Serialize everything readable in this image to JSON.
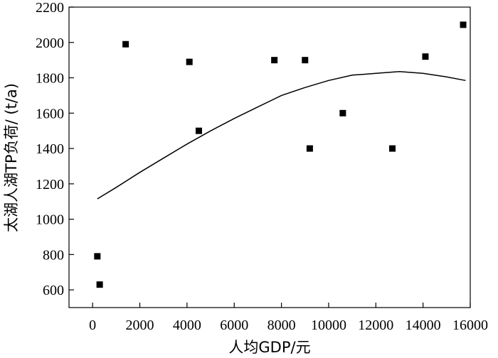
{
  "chart_data": {
    "type": "scatter",
    "title": "",
    "xlabel": "人均GDP/元",
    "ylabel": "太湖人湖TP负荷/ (t/a)",
    "xlim": [
      -1000,
      16000
    ],
    "ylim": [
      500,
      2200
    ],
    "x_ticks": [
      0,
      2000,
      4000,
      6000,
      8000,
      10000,
      12000,
      14000,
      16000
    ],
    "y_ticks": [
      600,
      800,
      1000,
      1200,
      1400,
      1600,
      1800,
      2000,
      2200
    ],
    "grid": false,
    "legend": "none",
    "points": {
      "x": [
        200,
        300,
        1400,
        4100,
        4500,
        7700,
        9000,
        9200,
        10600,
        12700,
        14100,
        15700
      ],
      "y": [
        790,
        630,
        1990,
        1890,
        1500,
        1900,
        1900,
        1400,
        1600,
        1400,
        1920,
        2100
      ]
    },
    "trend_line": {
      "x": [
        200,
        1000,
        2000,
        3000,
        4000,
        5000,
        6000,
        7000,
        8000,
        9000,
        10000,
        11000,
        12000,
        13000,
        14000,
        15000,
        15800
      ],
      "y": [
        1115,
        1180,
        1265,
        1345,
        1425,
        1500,
        1570,
        1635,
        1700,
        1745,
        1785,
        1815,
        1825,
        1835,
        1825,
        1805,
        1785
      ]
    },
    "colors": {
      "marker": "#000000",
      "line": "#000000"
    }
  }
}
